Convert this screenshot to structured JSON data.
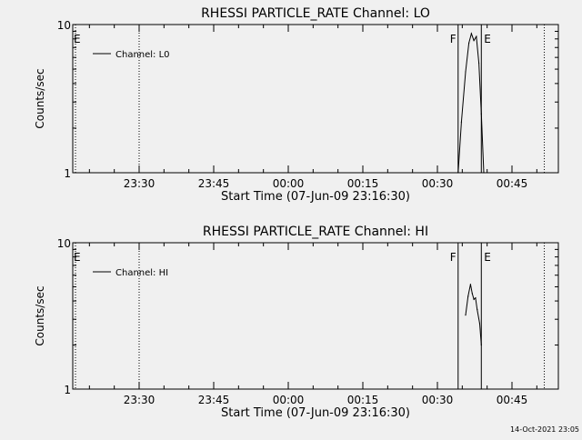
{
  "footer": {
    "timestamp": "14-Oct-2021 23:05"
  },
  "chart_data": [
    {
      "type": "line",
      "title": "RHESSI PARTICLE_RATE Channel: LO",
      "xlabel": "Start Time (07-Jun-09 23:16:30)",
      "ylabel": "Counts/sec",
      "y_scale": "log",
      "ylim": [
        1,
        10
      ],
      "y_ticks": [
        {
          "value": 1,
          "label": "1"
        },
        {
          "value": 10,
          "label": "10"
        }
      ],
      "x_ticks": [
        "23:30",
        "23:45",
        "00:00",
        "00:15",
        "00:30",
        "00:45"
      ],
      "legend": {
        "placement": "top-left",
        "entries": [
          "Channel: L0"
        ]
      },
      "markers": [
        {
          "label": "E",
          "style": "dotted"
        },
        {
          "label": "F",
          "style": "solid"
        },
        {
          "label": "E",
          "style": "solid"
        },
        {
          "label": "",
          "style": "dotted"
        }
      ],
      "series": [
        {
          "name": "Channel: L0",
          "x": [
            "00:34:10",
            "00:34:50",
            "00:35:40",
            "00:36:20",
            "00:36:50",
            "00:37:20",
            "00:37:50",
            "00:38:20",
            "00:38:50",
            "00:39:20"
          ],
          "y": [
            1.0,
            2.2,
            4.8,
            7.5,
            8.7,
            7.8,
            8.3,
            5.5,
            2.5,
            1.0
          ]
        }
      ]
    },
    {
      "type": "line",
      "title": "RHESSI PARTICLE_RATE Channel: HI",
      "xlabel": "Start Time (07-Jun-09 23:16:30)",
      "ylabel": "Counts/sec",
      "y_scale": "log",
      "ylim": [
        1,
        10
      ],
      "y_ticks": [
        {
          "value": 1,
          "label": "1"
        },
        {
          "value": 10,
          "label": "10"
        }
      ],
      "x_ticks": [
        "23:30",
        "23:45",
        "00:00",
        "00:15",
        "00:30",
        "00:45"
      ],
      "legend": {
        "placement": "top-left",
        "entries": [
          "Channel: HI"
        ]
      },
      "markers": [
        {
          "label": "E",
          "style": "dotted"
        },
        {
          "label": "F",
          "style": "solid"
        },
        {
          "label": "E",
          "style": "solid"
        },
        {
          "label": "",
          "style": "dotted"
        }
      ],
      "series": [
        {
          "name": "Channel: HI",
          "x": [
            "00:35:40",
            "00:36:10",
            "00:36:40",
            "00:37:00",
            "00:37:20",
            "00:37:40",
            "00:38:00",
            "00:38:30",
            "00:38:50"
          ],
          "y": [
            3.2,
            4.3,
            5.2,
            4.5,
            4.1,
            4.2,
            3.5,
            2.8,
            2.0
          ]
        }
      ]
    }
  ]
}
